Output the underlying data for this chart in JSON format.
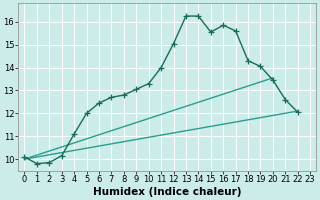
{
  "background_color": "#ccecea",
  "grid_color": "#b8dbd9",
  "line_color_main": "#1a6b5a",
  "line_color_light": "#2a9d8f",
  "xlabel": "Humidex (Indice chaleur)",
  "xlabel_fontsize": 7.5,
  "tick_fontsize": 6.0,
  "xlim": [
    -0.5,
    23.5
  ],
  "ylim": [
    9.5,
    16.8
  ],
  "yticks": [
    10,
    11,
    12,
    13,
    14,
    15,
    16
  ],
  "xticks": [
    0,
    1,
    2,
    3,
    4,
    5,
    6,
    7,
    8,
    9,
    10,
    11,
    12,
    13,
    14,
    15,
    16,
    17,
    18,
    19,
    20,
    21,
    22,
    23
  ],
  "series1_x": [
    0,
    1,
    2,
    3,
    4,
    5,
    6,
    7,
    8,
    9,
    10,
    11,
    12,
    13,
    14,
    15,
    16,
    17,
    18,
    19,
    20,
    21,
    22
  ],
  "series1_y": [
    10.1,
    9.8,
    9.85,
    10.15,
    11.1,
    12.0,
    12.45,
    12.7,
    12.8,
    13.05,
    13.3,
    14.0,
    15.05,
    16.25,
    16.25,
    15.55,
    15.85,
    15.6,
    14.3,
    14.05,
    13.45,
    12.6,
    12.05
  ],
  "series2_x": [
    0,
    22
  ],
  "series2_y": [
    10.0,
    12.1
  ],
  "series3_x": [
    0,
    20
  ],
  "series3_y": [
    10.0,
    13.55
  ],
  "marker_size": 4,
  "linewidth": 1.0
}
